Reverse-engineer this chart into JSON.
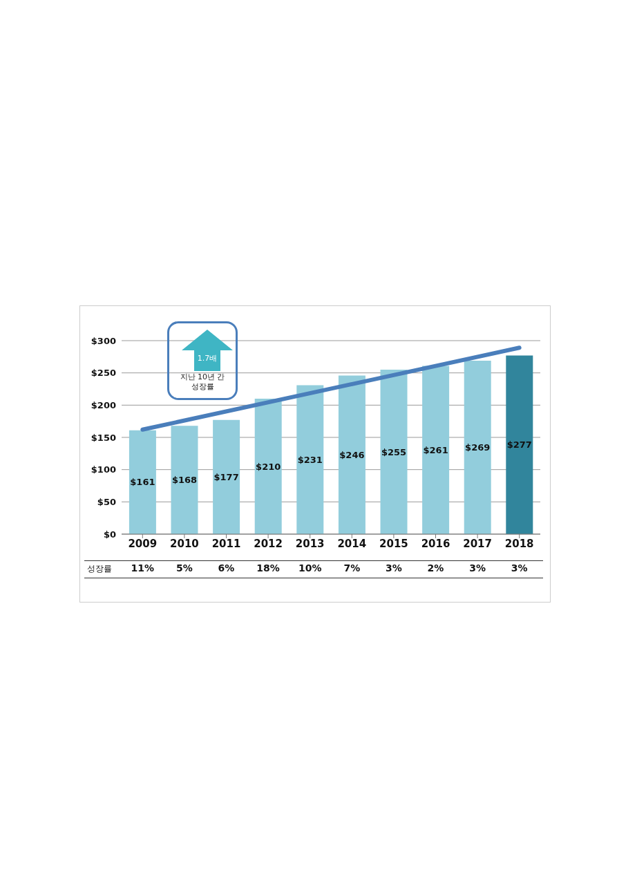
{
  "chart_data": {
    "type": "bar",
    "categories": [
      "2009",
      "2010",
      "2011",
      "2012",
      "2013",
      "2014",
      "2015",
      "2016",
      "2017",
      "2018"
    ],
    "series": [
      {
        "colors": [
          "#92cddc",
          "#92cddc",
          "#92cddc",
          "#92cddc",
          "#92cddc",
          "#92cddc",
          "#92cddc",
          "#92cddc",
          "#92cddc",
          "#31859c"
        ],
        "values": [
          161,
          168,
          177,
          210,
          231,
          246,
          255,
          261,
          269,
          277
        ],
        "value_labels": [
          "$161",
          "$168",
          "$177",
          "$210",
          "$231",
          "$246",
          "$255",
          "$261",
          "$269",
          "$277"
        ]
      },
      {
        "type": "line",
        "color": "#4a7ebb",
        "values": [
          162,
          null,
          null,
          null,
          null,
          null,
          null,
          null,
          null,
          289
        ]
      }
    ],
    "ylim": [
      0,
      300
    ],
    "yticks": [
      {
        "value": 0,
        "label": "$0"
      },
      {
        "value": 50,
        "label": "$50"
      },
      {
        "value": 100,
        "label": "$100"
      },
      {
        "value": 150,
        "label": "$150"
      },
      {
        "value": 200,
        "label": "$200"
      },
      {
        "value": 250,
        "label": "$250"
      },
      {
        "value": 300,
        "label": "$300"
      }
    ],
    "grid": "y",
    "legend": false,
    "marker": "none",
    "annotations": [
      "1.7배",
      "지난 10년 간 성장률",
      "성장률",
      "11%",
      "5%",
      "6%",
      "18%",
      "10%",
      "7%",
      "3%",
      "2%",
      "3%",
      "3%"
    ]
  }
}
